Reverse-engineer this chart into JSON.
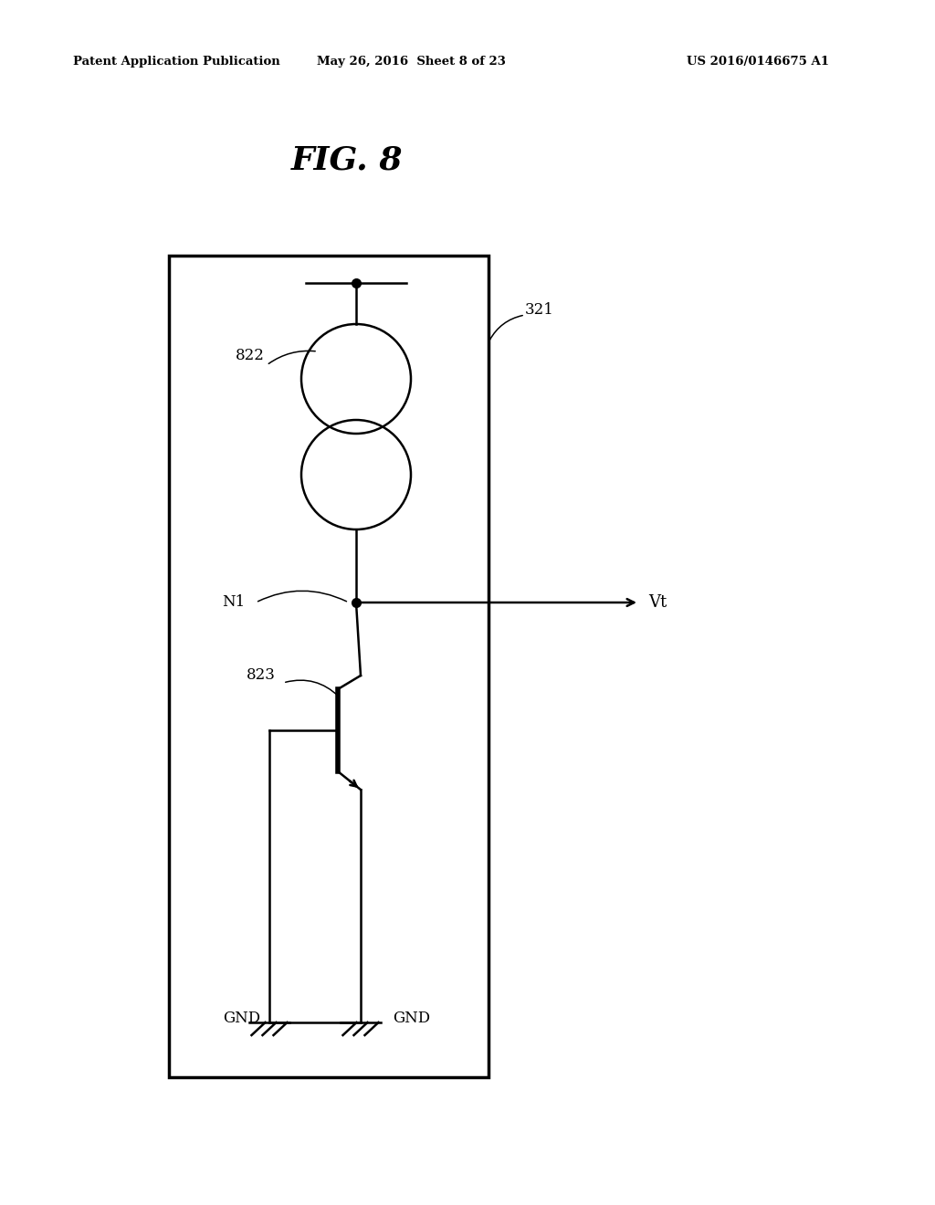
{
  "title": "FIG. 8",
  "header_left": "Patent Application Publication",
  "header_center": "May 26, 2016  Sheet 8 of 23",
  "header_right": "US 2016/0146675 A1",
  "bg_color": "#ffffff",
  "line_color": "#000000",
  "label_321": "321",
  "label_822": "822",
  "label_N1": "N1",
  "label_823": "823",
  "label_Vt": "Vt",
  "label_GND1": "GND",
  "label_GND2": "GND"
}
